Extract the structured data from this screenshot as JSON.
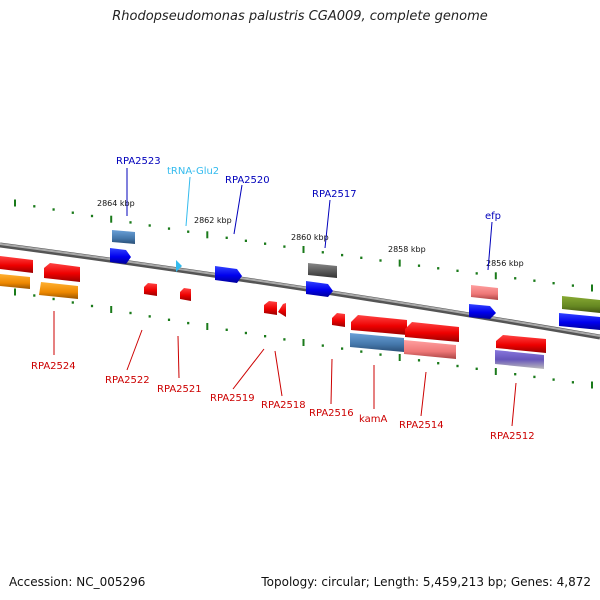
{
  "title": "Rhodopseudomonas palustris CGA009, complete genome",
  "footer": {
    "accession": "Accession: NC_005296",
    "topology": "Topology: circular; Length: 5,459,213 bp; Genes: 4,872"
  },
  "ticks": [
    "2864 kbp",
    "2862 kbp",
    "2860 kbp",
    "2858 kbp",
    "2856 kbp"
  ],
  "labels_above": [
    "RPA2523",
    "tRNA-Glu2",
    "RPA2520",
    "RPA2517",
    "efp"
  ],
  "labels_below": [
    "RPA2524",
    "RPA2522",
    "RPA2521",
    "RPA2519",
    "RPA2518",
    "RPA2516",
    "kamA",
    "RPA2514",
    "RPA2512"
  ],
  "colors": {
    "backbone": "#8a8a8a",
    "label_above": "#0000bb",
    "trna": "#33bbee",
    "label_below": "#cc0000",
    "dots": "#1a7a1a"
  }
}
